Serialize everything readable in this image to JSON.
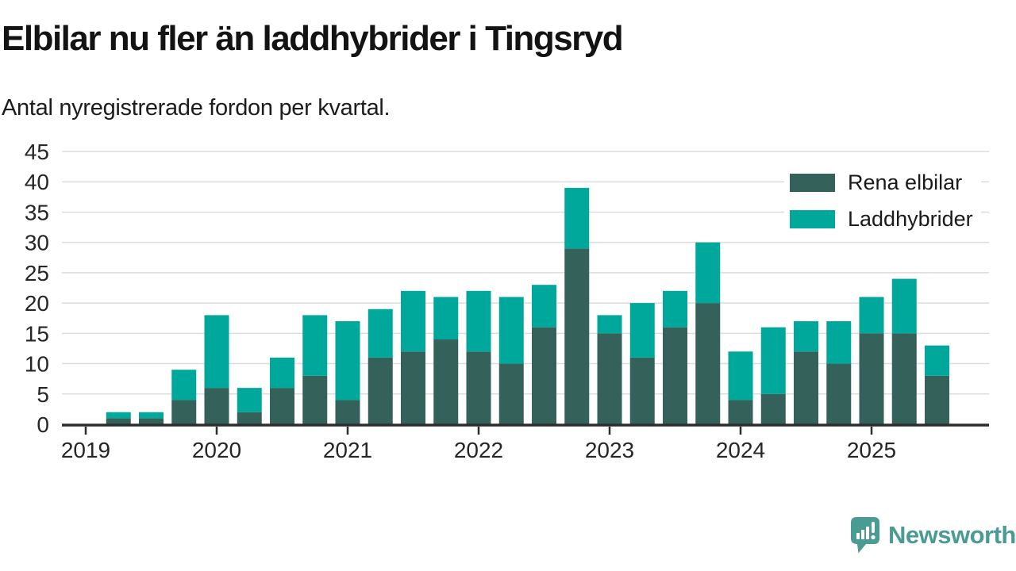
{
  "header": {
    "title": "Elbilar nu fler än laddhybrider i Tingsryd",
    "subtitle": "Antal nyregistrerade fordon per kvartal."
  },
  "footer": {
    "brand": "Newsworthy"
  },
  "colors": {
    "rena_elbilar": "#34615a",
    "laddhybrider": "#00a89b",
    "axis": "#2d2d2d",
    "gridline": "#dcdcdc",
    "tick_text": "#262626",
    "brand": "#4b9b95"
  },
  "chart_data": {
    "type": "bar",
    "stacked": true,
    "title": "Elbilar nu fler än laddhybrider i Tingsryd",
    "subtitle": "Antal nyregistrerade fordon per kvartal.",
    "xlabel": "",
    "ylabel": "",
    "grid": "horizontal",
    "legend_position": "top-right",
    "ylim": [
      0,
      45
    ],
    "y_ticks": [
      0,
      5,
      10,
      15,
      20,
      25,
      30,
      35,
      40,
      45
    ],
    "x_tick_labels": [
      "2019",
      "2020",
      "2021",
      "2022",
      "2023",
      "2024",
      "2025"
    ],
    "categories": [
      "2019 Q2",
      "2019 Q3",
      "2019 Q4",
      "2020 Q1",
      "2020 Q2",
      "2020 Q3",
      "2020 Q4",
      "2021 Q1",
      "2021 Q2",
      "2021 Q3",
      "2021 Q4",
      "2022 Q1",
      "2022 Q2",
      "2022 Q3",
      "2022 Q4",
      "2023 Q1",
      "2023 Q2",
      "2023 Q3",
      "2023 Q4",
      "2024 Q1",
      "2024 Q2",
      "2024 Q3",
      "2024 Q4",
      "2025 Q1",
      "2025 Q2",
      "2025 Q3"
    ],
    "series": [
      {
        "name": "Rena elbilar",
        "color_key": "rena_elbilar",
        "values": [
          1,
          1,
          4,
          6,
          2,
          6,
          8,
          4,
          11,
          12,
          14,
          12,
          10,
          16,
          29,
          15,
          11,
          16,
          20,
          4,
          5,
          12,
          10,
          15,
          15,
          8
        ]
      },
      {
        "name": "Laddhybrider",
        "color_key": "laddhybrider",
        "values": [
          1,
          1,
          5,
          12,
          4,
          5,
          10,
          13,
          8,
          10,
          7,
          10,
          11,
          7,
          10,
          3,
          9,
          6,
          10,
          8,
          11,
          5,
          7,
          6,
          9,
          5
        ]
      }
    ],
    "totals": [
      2,
      2,
      9,
      18,
      6,
      11,
      18,
      17,
      19,
      22,
      21,
      22,
      21,
      23,
      39,
      18,
      20,
      22,
      30,
      12,
      16,
      17,
      17,
      21,
      24,
      13
    ]
  }
}
